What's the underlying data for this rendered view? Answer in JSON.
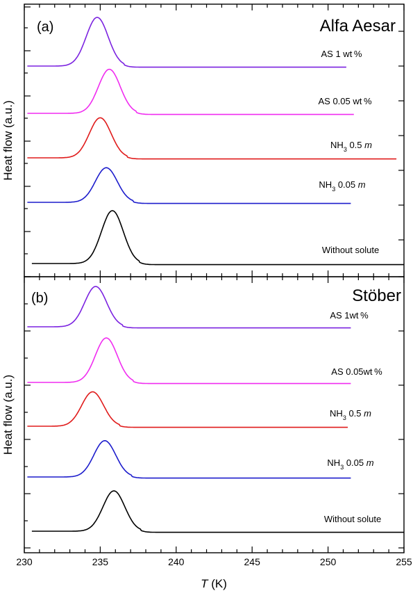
{
  "chart_data": [
    {
      "type": "line",
      "panel_label": "(a)",
      "title": "Alfa Aesar",
      "ylabel": "Heat flow (a.u.)",
      "xlim": [
        230,
        255
      ],
      "series": [
        {
          "name": "AS 1 wt %",
          "label_parts": [
            {
              "t": "AS 1 wt %"
            }
          ],
          "color": "#7b22e0",
          "x_start": 230.2,
          "x_end": 251.2,
          "peak_x": 234.8,
          "peak_height": 1.0
        },
        {
          "name": "AS 0.05 wt %",
          "label_parts": [
            {
              "t": "AS 0.05 wt %"
            }
          ],
          "color": "#f02cf0",
          "x_start": 230.2,
          "x_end": 251.7,
          "peak_x": 235.6,
          "peak_height": 0.96
        },
        {
          "name": "NH3 0.5 m",
          "label_parts": [
            {
              "t": "NH"
            },
            {
              "t": "3",
              "sub": true
            },
            {
              "t": " 0.5 "
            },
            {
              "t": "m",
              "it": true
            }
          ],
          "color": "#e01b1b",
          "x_start": 230.2,
          "x_end": 254.5,
          "peak_x": 235.0,
          "peak_height": 0.9
        },
        {
          "name": "NH3 0.05 m",
          "label_parts": [
            {
              "t": "NH"
            },
            {
              "t": "3",
              "sub": true
            },
            {
              "t": " 0.05 "
            },
            {
              "t": "m",
              "it": true
            }
          ],
          "color": "#1c1ccc",
          "x_start": 230.2,
          "x_end": 251.5,
          "peak_x": 235.4,
          "peak_height": 0.83
        },
        {
          "name": "Without solute",
          "label_parts": [
            {
              "t": "Without  solute"
            }
          ],
          "color": "#000000",
          "x_start": 230.5,
          "x_end": 255,
          "peak_x": 235.8,
          "peak_height": 1.0
        }
      ]
    },
    {
      "type": "line",
      "panel_label": "(b)",
      "title": "Stöber",
      "ylabel": "Heat flow (a.u.)",
      "xlabel_italic": "T",
      "xlabel_rest": " (K)",
      "xlim": [
        230,
        255
      ],
      "xticks": [
        230,
        235,
        240,
        245,
        250,
        255
      ],
      "series": [
        {
          "name": "AS 1wt %",
          "label_parts": [
            {
              "t": "AS 1wt %"
            }
          ],
          "color": "#7b22e0",
          "x_start": 230.2,
          "x_end": 251.5,
          "peak_x": 234.7,
          "peak_height": 1.0
        },
        {
          "name": "AS 0.05wt %",
          "label_parts": [
            {
              "t": "AS 0.05wt %"
            }
          ],
          "color": "#f02cf0",
          "x_start": 230.2,
          "x_end": 251.5,
          "peak_x": 235.4,
          "peak_height": 1.0
        },
        {
          "name": "NH3 0.5 m",
          "label_parts": [
            {
              "t": "NH"
            },
            {
              "t": "3",
              "sub": true
            },
            {
              "t": " 0.5 "
            },
            {
              "t": "m",
              "it": true
            }
          ],
          "color": "#e01b1b",
          "x_start": 230.2,
          "x_end": 251.3,
          "peak_x": 234.5,
          "peak_height": 0.9
        },
        {
          "name": "NH3 0.05 m",
          "label_parts": [
            {
              "t": "NH"
            },
            {
              "t": "3",
              "sub": true
            },
            {
              "t": " 0.05 "
            },
            {
              "t": "m",
              "it": true
            }
          ],
          "color": "#1c1ccc",
          "x_start": 230.2,
          "x_end": 251.5,
          "peak_x": 235.3,
          "peak_height": 0.9
        },
        {
          "name": "Without solute",
          "label_parts": [
            {
              "t": "Without  solute"
            }
          ],
          "color": "#000000",
          "x_start": 230.5,
          "x_end": 255,
          "peak_x": 235.9,
          "peak_height": 1.0
        }
      ]
    }
  ]
}
